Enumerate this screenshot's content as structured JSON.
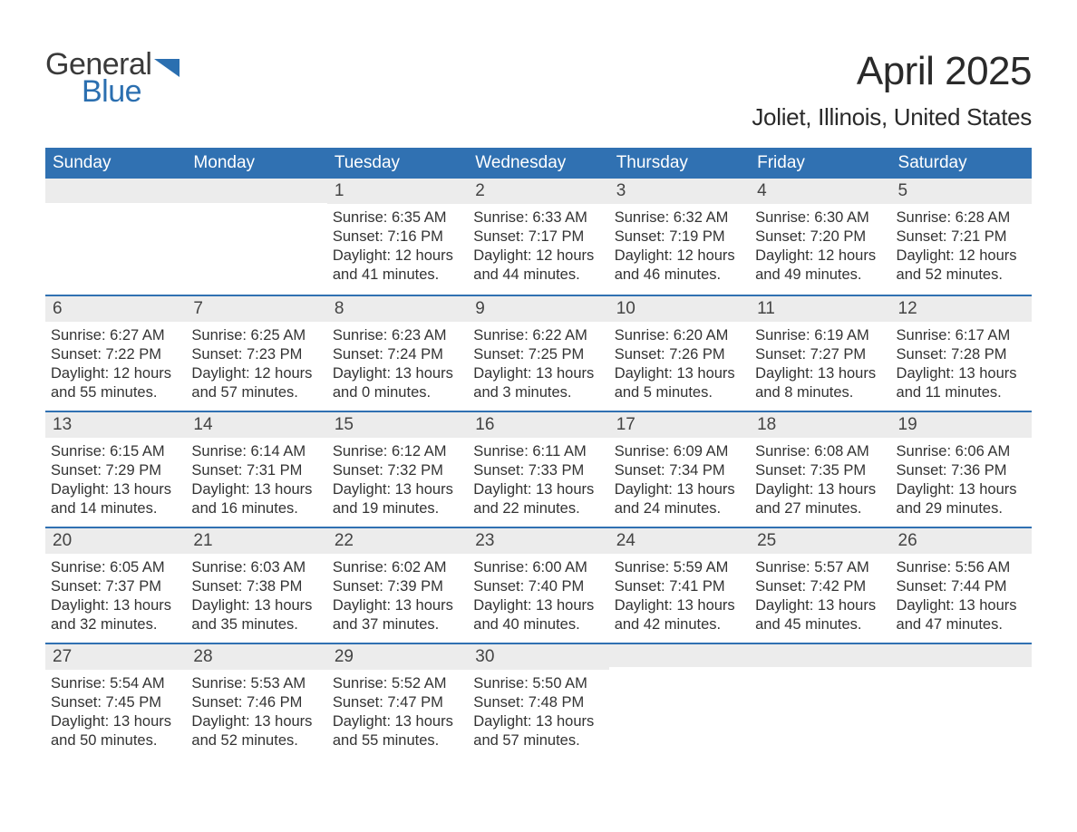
{
  "logo": {
    "word1": "General",
    "word2": "Blue",
    "tri_color": "#2b6fb0",
    "text1_color": "#3a3a3a",
    "text2_color": "#2b6fb0"
  },
  "title": "April 2025",
  "location": "Joliet, Illinois, United States",
  "header_bg": "#3071b2",
  "header_text_color": "#ffffff",
  "daynum_bg": "#ececec",
  "rule_color": "#3071b2",
  "text_color": "#333333",
  "day_names": [
    "Sunday",
    "Monday",
    "Tuesday",
    "Wednesday",
    "Thursday",
    "Friday",
    "Saturday"
  ],
  "weeks": [
    [
      null,
      null,
      {
        "n": "1",
        "sr": "6:35 AM",
        "ss": "7:16 PM",
        "dl": "12 hours and 41 minutes."
      },
      {
        "n": "2",
        "sr": "6:33 AM",
        "ss": "7:17 PM",
        "dl": "12 hours and 44 minutes."
      },
      {
        "n": "3",
        "sr": "6:32 AM",
        "ss": "7:19 PM",
        "dl": "12 hours and 46 minutes."
      },
      {
        "n": "4",
        "sr": "6:30 AM",
        "ss": "7:20 PM",
        "dl": "12 hours and 49 minutes."
      },
      {
        "n": "5",
        "sr": "6:28 AM",
        "ss": "7:21 PM",
        "dl": "12 hours and 52 minutes."
      }
    ],
    [
      {
        "n": "6",
        "sr": "6:27 AM",
        "ss": "7:22 PM",
        "dl": "12 hours and 55 minutes."
      },
      {
        "n": "7",
        "sr": "6:25 AM",
        "ss": "7:23 PM",
        "dl": "12 hours and 57 minutes."
      },
      {
        "n": "8",
        "sr": "6:23 AM",
        "ss": "7:24 PM",
        "dl": "13 hours and 0 minutes."
      },
      {
        "n": "9",
        "sr": "6:22 AM",
        "ss": "7:25 PM",
        "dl": "13 hours and 3 minutes."
      },
      {
        "n": "10",
        "sr": "6:20 AM",
        "ss": "7:26 PM",
        "dl": "13 hours and 5 minutes."
      },
      {
        "n": "11",
        "sr": "6:19 AM",
        "ss": "7:27 PM",
        "dl": "13 hours and 8 minutes."
      },
      {
        "n": "12",
        "sr": "6:17 AM",
        "ss": "7:28 PM",
        "dl": "13 hours and 11 minutes."
      }
    ],
    [
      {
        "n": "13",
        "sr": "6:15 AM",
        "ss": "7:29 PM",
        "dl": "13 hours and 14 minutes."
      },
      {
        "n": "14",
        "sr": "6:14 AM",
        "ss": "7:31 PM",
        "dl": "13 hours and 16 minutes."
      },
      {
        "n": "15",
        "sr": "6:12 AM",
        "ss": "7:32 PM",
        "dl": "13 hours and 19 minutes."
      },
      {
        "n": "16",
        "sr": "6:11 AM",
        "ss": "7:33 PM",
        "dl": "13 hours and 22 minutes."
      },
      {
        "n": "17",
        "sr": "6:09 AM",
        "ss": "7:34 PM",
        "dl": "13 hours and 24 minutes."
      },
      {
        "n": "18",
        "sr": "6:08 AM",
        "ss": "7:35 PM",
        "dl": "13 hours and 27 minutes."
      },
      {
        "n": "19",
        "sr": "6:06 AM",
        "ss": "7:36 PM",
        "dl": "13 hours and 29 minutes."
      }
    ],
    [
      {
        "n": "20",
        "sr": "6:05 AM",
        "ss": "7:37 PM",
        "dl": "13 hours and 32 minutes."
      },
      {
        "n": "21",
        "sr": "6:03 AM",
        "ss": "7:38 PM",
        "dl": "13 hours and 35 minutes."
      },
      {
        "n": "22",
        "sr": "6:02 AM",
        "ss": "7:39 PM",
        "dl": "13 hours and 37 minutes."
      },
      {
        "n": "23",
        "sr": "6:00 AM",
        "ss": "7:40 PM",
        "dl": "13 hours and 40 minutes."
      },
      {
        "n": "24",
        "sr": "5:59 AM",
        "ss": "7:41 PM",
        "dl": "13 hours and 42 minutes."
      },
      {
        "n": "25",
        "sr": "5:57 AM",
        "ss": "7:42 PM",
        "dl": "13 hours and 45 minutes."
      },
      {
        "n": "26",
        "sr": "5:56 AM",
        "ss": "7:44 PM",
        "dl": "13 hours and 47 minutes."
      }
    ],
    [
      {
        "n": "27",
        "sr": "5:54 AM",
        "ss": "7:45 PM",
        "dl": "13 hours and 50 minutes."
      },
      {
        "n": "28",
        "sr": "5:53 AM",
        "ss": "7:46 PM",
        "dl": "13 hours and 52 minutes."
      },
      {
        "n": "29",
        "sr": "5:52 AM",
        "ss": "7:47 PM",
        "dl": "13 hours and 55 minutes."
      },
      {
        "n": "30",
        "sr": "5:50 AM",
        "ss": "7:48 PM",
        "dl": "13 hours and 57 minutes."
      },
      null,
      null,
      null
    ]
  ],
  "labels": {
    "sunrise": "Sunrise:",
    "sunset": "Sunset:",
    "daylight": "Daylight:"
  }
}
